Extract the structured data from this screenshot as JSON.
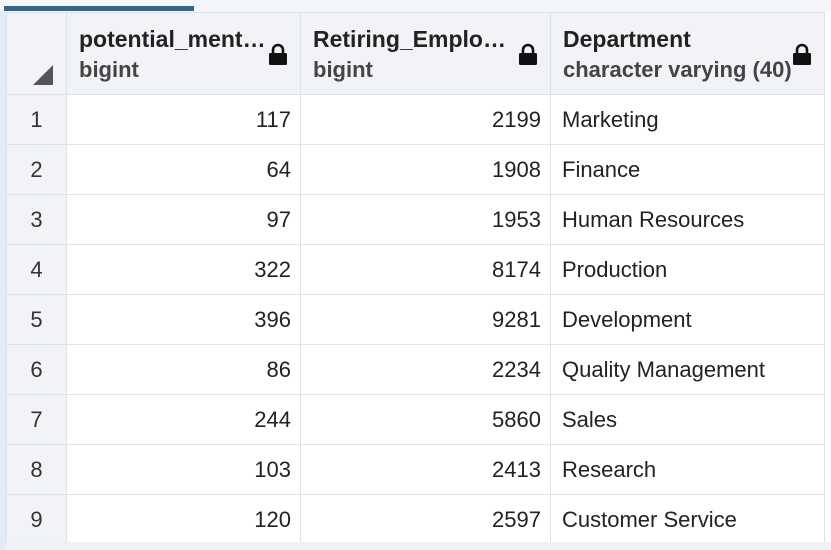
{
  "columns": [
    {
      "name": "potential_mentors",
      "type": "bigint"
    },
    {
      "name": "Retiring_Employees",
      "type": "bigint"
    },
    {
      "name": "Department",
      "type": "character varying (40)"
    }
  ],
  "rows": [
    {
      "num": "1",
      "potential_mentors": "117",
      "retiring_employees": "2199",
      "department": "Marketing"
    },
    {
      "num": "2",
      "potential_mentors": "64",
      "retiring_employees": "1908",
      "department": "Finance"
    },
    {
      "num": "3",
      "potential_mentors": "97",
      "retiring_employees": "1953",
      "department": "Human Resources"
    },
    {
      "num": "4",
      "potential_mentors": "322",
      "retiring_employees": "8174",
      "department": "Production"
    },
    {
      "num": "5",
      "potential_mentors": "396",
      "retiring_employees": "9281",
      "department": "Development"
    },
    {
      "num": "6",
      "potential_mentors": "86",
      "retiring_employees": "2234",
      "department": "Quality Management"
    },
    {
      "num": "7",
      "potential_mentors": "244",
      "retiring_employees": "5860",
      "department": "Sales"
    },
    {
      "num": "8",
      "potential_mentors": "103",
      "retiring_employees": "2413",
      "department": "Research"
    },
    {
      "num": "9",
      "potential_mentors": "120",
      "retiring_employees": "2597",
      "department": "Customer Service"
    }
  ],
  "icons": {
    "lock": "lock-icon",
    "sort": "sort-triangle-icon"
  }
}
